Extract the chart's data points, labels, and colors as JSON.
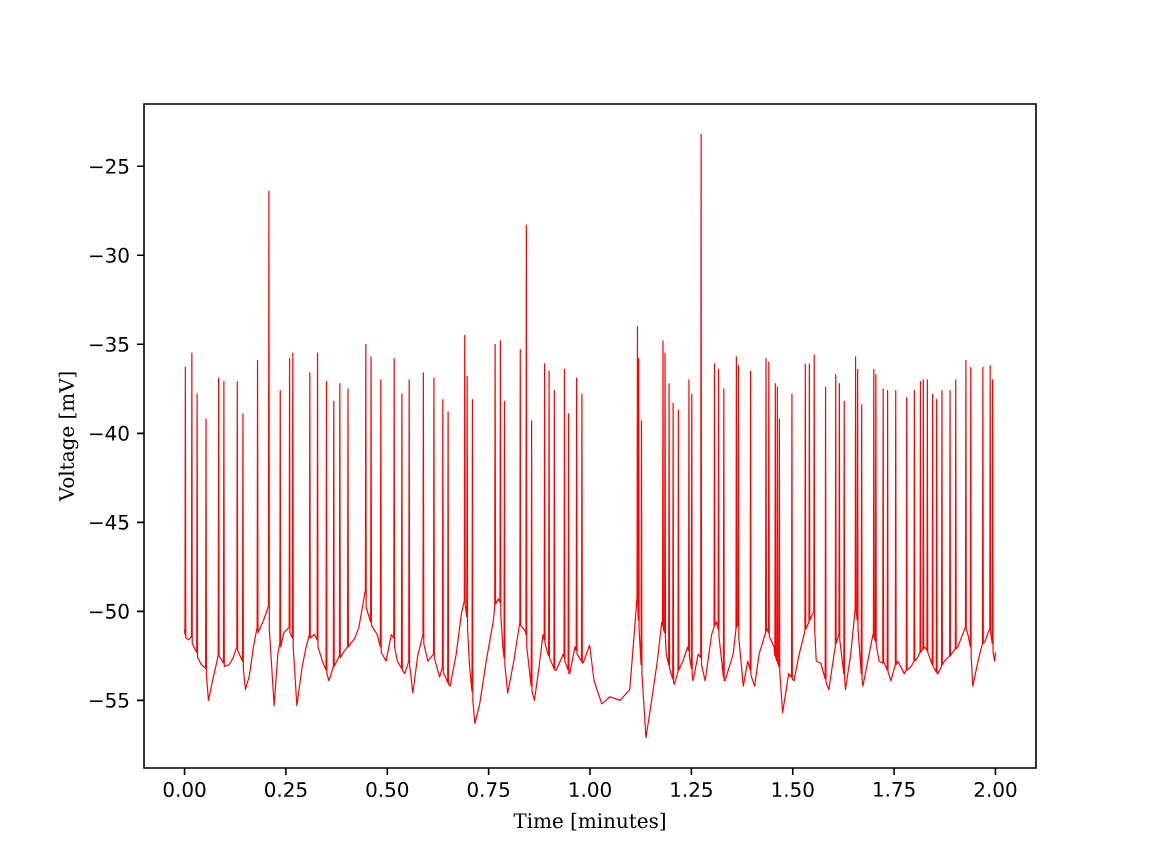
{
  "chart_data": {
    "type": "line",
    "xlabel": "Time [minutes]",
    "ylabel": "Voltage [mV]",
    "color": "#ff0000",
    "line_style": "solid",
    "grid": false,
    "xlim": [
      -0.1,
      2.1
    ],
    "ylim": [
      -58.8,
      -21.5
    ],
    "xticks": [
      {
        "value": 0.0,
        "label": "0.00"
      },
      {
        "value": 0.25,
        "label": "0.25"
      },
      {
        "value": 0.5,
        "label": "0.50"
      },
      {
        "value": 0.75,
        "label": "0.75"
      },
      {
        "value": 1.0,
        "label": "1.00"
      },
      {
        "value": 1.25,
        "label": "1.25"
      },
      {
        "value": 1.5,
        "label": "1.50"
      },
      {
        "value": 1.75,
        "label": "1.75"
      },
      {
        "value": 2.0,
        "label": "2.00"
      }
    ],
    "yticks": [
      {
        "value": -55,
        "label": "−55"
      },
      {
        "value": -50,
        "label": "−50"
      },
      {
        "value": -45,
        "label": "−45"
      },
      {
        "value": -40,
        "label": "−40"
      },
      {
        "value": -35,
        "label": "−35"
      },
      {
        "value": -30,
        "label": "−30"
      },
      {
        "value": -25,
        "label": "−25"
      }
    ],
    "x": [
      0.0,
      0.001,
      0.002,
      0.003,
      0.01,
      0.017,
      0.018,
      0.019,
      0.025,
      0.03,
      0.031,
      0.032,
      0.042,
      0.052,
      0.053,
      0.054,
      0.059,
      0.07,
      0.08,
      0.083,
      0.084,
      0.085,
      0.096,
      0.097,
      0.098,
      0.11,
      0.12,
      0.129,
      0.13,
      0.131,
      0.143,
      0.144,
      0.145,
      0.15,
      0.16,
      0.17,
      0.179,
      0.18,
      0.181,
      0.195,
      0.207,
      0.208,
      0.209,
      0.221,
      0.23,
      0.235,
      0.236,
      0.237,
      0.245,
      0.258,
      0.259,
      0.26,
      0.266,
      0.267,
      0.268,
      0.277,
      0.29,
      0.3,
      0.308,
      0.309,
      0.31,
      0.32,
      0.327,
      0.328,
      0.329,
      0.34,
      0.349,
      0.35,
      0.351,
      0.356,
      0.367,
      0.368,
      0.369,
      0.382,
      0.383,
      0.384,
      0.395,
      0.402,
      0.403,
      0.404,
      0.42,
      0.43,
      0.446,
      0.447,
      0.448,
      0.459,
      0.46,
      0.461,
      0.475,
      0.483,
      0.484,
      0.485,
      0.497,
      0.51,
      0.516,
      0.517,
      0.518,
      0.525,
      0.535,
      0.536,
      0.537,
      0.543,
      0.553,
      0.554,
      0.555,
      0.563,
      0.575,
      0.588,
      0.589,
      0.59,
      0.6,
      0.614,
      0.615,
      0.616,
      0.629,
      0.636,
      0.637,
      0.638,
      0.649,
      0.65,
      0.651,
      0.655,
      0.67,
      0.683,
      0.69,
      0.691,
      0.692,
      0.696,
      0.697,
      0.698,
      0.703,
      0.709,
      0.71,
      0.711,
      0.716,
      0.728,
      0.744,
      0.761,
      0.765,
      0.766,
      0.767,
      0.774,
      0.778,
      0.779,
      0.78,
      0.785,
      0.788,
      0.789,
      0.79,
      0.797,
      0.812,
      0.827,
      0.828,
      0.829,
      0.84,
      0.842,
      0.843,
      0.844,
      0.855,
      0.856,
      0.857,
      0.863,
      0.875,
      0.884,
      0.887,
      0.888,
      0.889,
      0.896,
      0.898,
      0.899,
      0.9,
      0.911,
      0.912,
      0.913,
      0.917,
      0.934,
      0.936,
      0.937,
      0.938,
      0.946,
      0.947,
      0.948,
      0.95,
      0.963,
      0.966,
      0.967,
      0.968,
      0.979,
      0.98,
      0.981,
      0.983,
      0.999,
      1.01,
      1.029,
      1.049,
      1.074,
      1.098,
      1.11,
      1.116,
      1.117,
      1.118,
      1.119,
      1.12,
      1.121,
      1.126,
      1.127,
      1.128,
      1.138,
      1.152,
      1.166,
      1.177,
      1.179,
      1.18,
      1.181,
      1.184,
      1.185,
      1.186,
      1.188,
      1.194,
      1.195,
      1.196,
      1.204,
      1.205,
      1.206,
      1.208,
      1.217,
      1.218,
      1.219,
      1.229,
      1.241,
      1.243,
      1.244,
      1.245,
      1.25,
      1.251,
      1.252,
      1.254,
      1.267,
      1.273,
      1.274,
      1.275,
      1.284,
      1.3,
      1.306,
      1.307,
      1.308,
      1.312,
      1.316,
      1.317,
      1.318,
      1.329,
      1.33,
      1.331,
      1.333,
      1.353,
      1.36,
      1.361,
      1.362,
      1.363,
      1.365,
      1.366,
      1.367,
      1.378,
      1.389,
      1.395,
      1.396,
      1.397,
      1.406,
      1.417,
      1.429,
      1.433,
      1.434,
      1.435,
      1.437,
      1.44,
      1.441,
      1.442,
      1.454,
      1.456,
      1.457,
      1.458,
      1.461,
      1.462,
      1.463,
      1.466,
      1.467,
      1.468,
      1.475,
      1.49,
      1.497,
      1.498,
      1.499,
      1.503,
      1.516,
      1.528,
      1.53,
      1.531,
      1.532,
      1.54,
      1.541,
      1.542,
      1.55,
      1.552,
      1.553,
      1.554,
      1.558,
      1.569,
      1.58,
      1.581,
      1.582,
      1.589,
      1.602,
      1.605,
      1.606,
      1.607,
      1.614,
      1.615,
      1.616,
      1.626,
      1.627,
      1.628,
      1.63,
      1.643,
      1.654,
      1.655,
      1.656,
      1.659,
      1.66,
      1.661,
      1.669,
      1.67,
      1.671,
      1.673,
      1.685,
      1.698,
      1.699,
      1.7,
      1.701,
      1.704,
      1.705,
      1.706,
      1.713,
      1.722,
      1.723,
      1.724,
      1.726,
      1.733,
      1.734,
      1.735,
      1.742,
      1.753,
      1.754,
      1.755,
      1.759,
      1.775,
      1.78,
      1.781,
      1.782,
      1.792,
      1.799,
      1.8,
      1.801,
      1.808,
      1.814,
      1.815,
      1.816,
      1.821,
      1.822,
      1.823,
      1.825,
      1.831,
      1.832,
      1.833,
      1.841,
      1.844,
      1.845,
      1.846,
      1.854,
      1.855,
      1.856,
      1.858,
      1.867,
      1.868,
      1.869,
      1.874,
      1.887,
      1.888,
      1.889,
      1.891,
      1.901,
      1.902,
      1.903,
      1.907,
      1.924,
      1.926,
      1.927,
      1.928,
      1.932,
      1.938,
      1.939,
      1.94,
      1.944,
      1.957,
      1.968,
      1.969,
      1.97,
      1.974,
      1.985,
      1.986,
      1.987,
      1.988,
      1.992,
      1.993,
      1.994,
      1.998,
      2.0
    ],
    "values": [
      -51.0,
      -51.3,
      -36.3,
      -51.5,
      -51.6,
      -51.4,
      -35.5,
      -51.8,
      -52.1,
      -52.3,
      -37.8,
      -52.6,
      -53.0,
      -53.2,
      -39.2,
      -53.6,
      -55.0,
      -53.8,
      -52.8,
      -52.4,
      -36.9,
      -52.5,
      -52.9,
      -37.1,
      -53.1,
      -53.0,
      -52.6,
      -52.0,
      -37.1,
      -52.2,
      -52.8,
      -38.9,
      -53.2,
      -54.4,
      -53.6,
      -52.0,
      -50.9,
      -35.9,
      -51.2,
      -50.5,
      -49.7,
      -26.4,
      -51.0,
      -55.3,
      -52.4,
      -51.8,
      -37.6,
      -52.0,
      -51.2,
      -50.9,
      -35.8,
      -51.2,
      -51.5,
      -35.5,
      -52.0,
      -55.3,
      -53.1,
      -52.0,
      -51.3,
      -36.6,
      -51.5,
      -51.3,
      -51.6,
      -35.5,
      -52.0,
      -52.8,
      -53.3,
      -37.1,
      -53.5,
      -53.9,
      -53.1,
      -38.2,
      -53.1,
      -52.5,
      -37.2,
      -52.6,
      -52.2,
      -52.0,
      -37.5,
      -52.0,
      -51.5,
      -50.9,
      -48.8,
      -35.0,
      -49.8,
      -50.6,
      -35.7,
      -50.8,
      -51.3,
      -52.0,
      -37.0,
      -52.3,
      -52.8,
      -51.3,
      -51.5,
      -35.8,
      -52.0,
      -52.8,
      -53.2,
      -37.8,
      -53.3,
      -53.5,
      -52.8,
      -37.0,
      -53.0,
      -54.6,
      -52.5,
      -51.3,
      -36.6,
      -51.8,
      -52.8,
      -52.4,
      -36.9,
      -52.6,
      -53.7,
      -53.1,
      -38.1,
      -53.4,
      -54.0,
      -38.8,
      -54.1,
      -54.2,
      -52.4,
      -50.1,
      -49.4,
      -34.5,
      -49.6,
      -50.3,
      -36.8,
      -51.0,
      -53.1,
      -54.5,
      -38.1,
      -55.0,
      -56.3,
      -55.2,
      -52.8,
      -50.6,
      -49.8,
      -35.0,
      -49.6,
      -49.3,
      -49.5,
      -34.8,
      -50.2,
      -52.0,
      -52.6,
      -38.2,
      -53.0,
      -54.6,
      -52.8,
      -50.6,
      -35.3,
      -50.8,
      -51.1,
      -51.3,
      -28.3,
      -52.0,
      -54.2,
      -39.3,
      -54.5,
      -55.0,
      -53.0,
      -51.3,
      -51.6,
      -36.1,
      -51.8,
      -52.4,
      -52.5,
      -36.5,
      -52.6,
      -53.2,
      -37.6,
      -53.3,
      -53.3,
      -52.4,
      -52.6,
      -36.4,
      -52.8,
      -53.3,
      -38.9,
      -53.5,
      -53.5,
      -52.0,
      -52.2,
      -36.9,
      -52.4,
      -52.8,
      -37.8,
      -52.9,
      -52.9,
      -51.9,
      -53.9,
      -55.2,
      -54.8,
      -55.0,
      -54.4,
      -51.0,
      -49.2,
      -34.0,
      -49.8,
      -50.5,
      -35.8,
      -51.0,
      -53.0,
      -39.3,
      -53.5,
      -57.1,
      -55.0,
      -52.8,
      -50.6,
      -50.8,
      -34.8,
      -51.0,
      -51.2,
      -35.5,
      -51.5,
      -52.4,
      -53.0,
      -37.2,
      -53.2,
      -53.8,
      -38.3,
      -54.0,
      -54.1,
      -53.4,
      -38.7,
      -53.3,
      -52.8,
      -52.0,
      -52.2,
      -37.0,
      -52.5,
      -53.2,
      -37.8,
      -53.6,
      -53.9,
      -52.4,
      -52.6,
      -23.2,
      -53.0,
      -53.9,
      -51.3,
      -50.9,
      -36.1,
      -50.8,
      -50.6,
      -51.0,
      -36.4,
      -51.4,
      -53.7,
      -37.5,
      -53.9,
      -53.9,
      -52.4,
      -51.0,
      -35.7,
      -50.9,
      -50.6,
      -50.8,
      -36.2,
      -51.5,
      -54.2,
      -52.8,
      -53.3,
      -36.5,
      -53.6,
      -54.2,
      -52.4,
      -51.5,
      -51.2,
      -35.8,
      -51.1,
      -51.0,
      -51.2,
      -36.0,
      -51.4,
      -52.0,
      -52.5,
      -37.2,
      -52.6,
      -52.8,
      -37.4,
      -52.9,
      -53.1,
      -39.2,
      -53.4,
      -55.7,
      -53.5,
      -53.7,
      -37.8,
      -53.8,
      -53.9,
      -52.4,
      -51.3,
      -51.1,
      -36.1,
      -51.0,
      -50.6,
      -36.1,
      -50.5,
      -50.1,
      -50.0,
      -35.6,
      -51.0,
      -52.8,
      -52.9,
      -53.8,
      -37.4,
      -54.0,
      -54.4,
      -52.4,
      -52.0,
      -36.7,
      -51.8,
      -51.3,
      -37.2,
      -51.6,
      -53.5,
      -38.2,
      -53.8,
      -54.4,
      -52.4,
      -49.9,
      -35.7,
      -49.9,
      -50.5,
      -36.4,
      -51.0,
      -53.5,
      -38.4,
      -53.8,
      -54.2,
      -52.8,
      -51.3,
      -51.4,
      -36.4,
      -51.5,
      -51.7,
      -36.7,
      -51.9,
      -52.8,
      -52.9,
      -37.5,
      -52.9,
      -52.9,
      -53.3,
      -37.6,
      -53.4,
      -53.9,
      -53.0,
      -37.6,
      -53.0,
      -52.8,
      -53.5,
      -53.3,
      -38.0,
      -53.3,
      -53.1,
      -52.8,
      -37.6,
      -52.8,
      -52.6,
      -52.3,
      -37.1,
      -52.3,
      -52.1,
      -37.0,
      -52.1,
      -52.0,
      -52.2,
      -37.0,
      -52.3,
      -52.8,
      -53.0,
      -37.8,
      -53.1,
      -53.4,
      -38.1,
      -53.5,
      -53.5,
      -53.1,
      -37.6,
      -53.0,
      -52.8,
      -52.5,
      -37.6,
      -52.5,
      -52.4,
      -52.1,
      -37.0,
      -52.1,
      -52.0,
      -51.0,
      -50.9,
      -35.9,
      -51.0,
      -51.3,
      -52.0,
      -36.3,
      -52.5,
      -54.2,
      -52.8,
      -51.8,
      -36.3,
      -51.8,
      -51.7,
      -51.0,
      -51.0,
      -36.2,
      -51.2,
      -51.8,
      -37.0,
      -52.3,
      -52.8,
      -52.3
    ]
  }
}
